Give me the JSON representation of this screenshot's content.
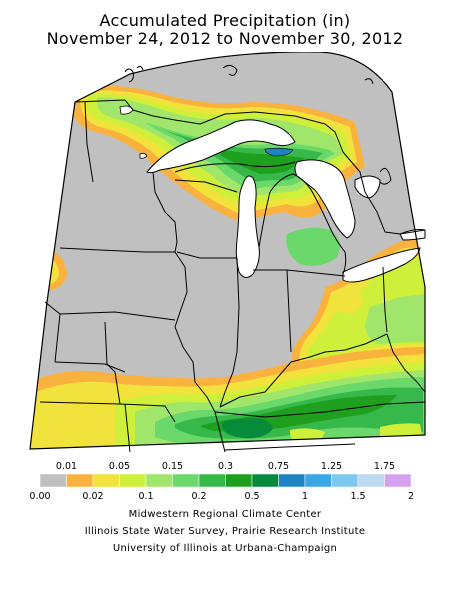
{
  "title_line1": "Accumulated Precipitation (in)",
  "title_line2": "November 24, 2012 to November 30, 2012",
  "legend": {
    "upper_labels": [
      "0.01",
      "0.05",
      "0.15",
      "0.3",
      "0.75",
      "1.25",
      "1.75"
    ],
    "lower_labels": [
      "0.00",
      "0.02",
      "0.1",
      "0.2",
      "0.5",
      "1",
      "1.5",
      "2"
    ],
    "colors": [
      "#c0c0c0",
      "#f9b23d",
      "#f2e23c",
      "#cff03a",
      "#9fe66a",
      "#6ad86a",
      "#37b84a",
      "#1ea01e",
      "#078a3a",
      "#1f84c4",
      "#3aa6e3",
      "#7ec8ef",
      "#bdd9f2",
      "#d6a0f0"
    ]
  },
  "credits": [
    "Midwestern Regional Climate Center",
    "Illinois State Water Survey, Prairie Research Institute",
    "University of Illinois at Urbana-Champaign"
  ]
}
